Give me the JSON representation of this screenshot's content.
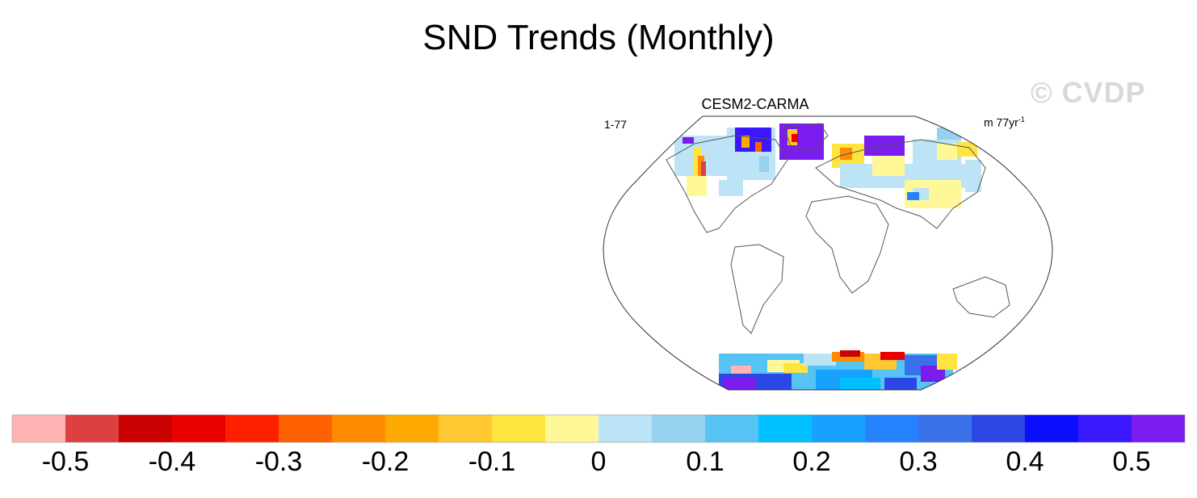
{
  "title": "SND Trends (Monthly)",
  "watermark": "© CVDP",
  "panel": {
    "title": "CESM2-CARMA",
    "left_label": "1-77",
    "right_label": "m 77yr",
    "right_label_sup": "-1"
  },
  "colorbar": {
    "colors": [
      "#ffb3b3",
      "#dd4040",
      "#c80000",
      "#eb0000",
      "#ff2000",
      "#ff6000",
      "#ff8c00",
      "#ffaa00",
      "#ffc830",
      "#ffe440",
      "#fff898",
      "#bde3f6",
      "#96d1ee",
      "#55c4f4",
      "#00c0ff",
      "#18a2ff",
      "#2683ff",
      "#3a70e8",
      "#2b47e6",
      "#0a10ff",
      "#3a18ff",
      "#7a1cf0"
    ],
    "tick_labels": [
      "-0.5",
      "-0.4",
      "-0.3",
      "-0.2",
      "-0.1",
      "0",
      "0.1",
      "0.2",
      "0.3",
      "0.4",
      "0.5"
    ]
  },
  "legend_levels": [
    -0.55,
    -0.5,
    -0.45,
    -0.4,
    -0.35,
    -0.3,
    -0.25,
    -0.2,
    -0.15,
    -0.1,
    -0.05,
    0,
    0.05,
    0.1,
    0.15,
    0.2,
    0.25,
    0.3,
    0.35,
    0.4,
    0.45,
    0.5,
    0.55
  ],
  "map": {
    "projection": "Robinson",
    "land_color": "#ffffff",
    "outline_color": "#555555"
  }
}
